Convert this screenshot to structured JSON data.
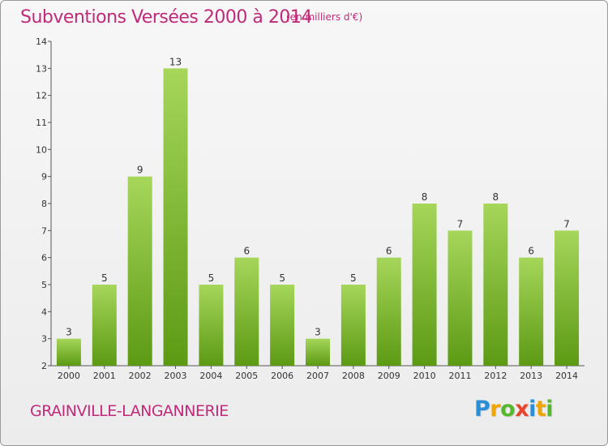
{
  "title": "Subventions Versées 2000 à 2014",
  "subtitle": "(en milliers d'€)",
  "commune": "GRAINVILLE-LANGANNERIE",
  "logo": {
    "letters": [
      "P",
      "r",
      "o",
      "x",
      "i",
      "t",
      "i"
    ],
    "colors": [
      "#2b8fd6",
      "#f0a500",
      "#56b82e",
      "#e8452c",
      "#2b8fd6",
      "#f0a500",
      "#56b82e"
    ]
  },
  "colors": {
    "bar_light": "#a6d65a",
    "bar_dark": "#5c9a14",
    "title": "#c02a7a"
  },
  "chart_data": {
    "type": "bar",
    "categories": [
      "2000",
      "2001",
      "2002",
      "2003",
      "2004",
      "2005",
      "2006",
      "2007",
      "2008",
      "2009",
      "2010",
      "2011",
      "2012",
      "2013",
      "2014"
    ],
    "values": [
      3,
      5,
      9,
      13,
      5,
      6,
      5,
      3,
      5,
      6,
      8,
      7,
      8,
      6,
      7
    ],
    "ylim": [
      2,
      14
    ],
    "yticks": [
      2,
      3,
      4,
      5,
      6,
      7,
      8,
      9,
      10,
      11,
      12,
      13,
      14
    ],
    "title": "Subventions Versées 2000 à 2014",
    "subtitle": "(en milliers d'€)",
    "xlabel": "",
    "ylabel": "",
    "grid": false,
    "data_labels": true
  }
}
